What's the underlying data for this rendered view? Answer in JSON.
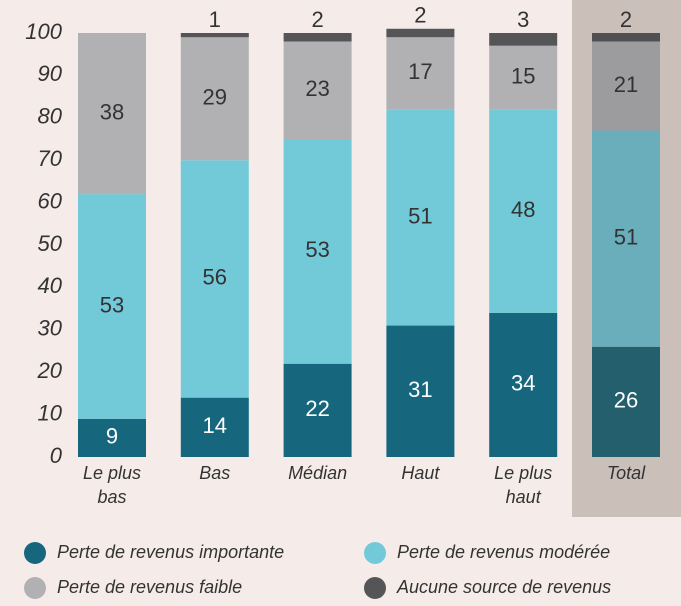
{
  "chart_data": {
    "type": "stacked_bar",
    "categories": [
      "Le plus bas",
      "Bas",
      "Médian",
      "Haut",
      "Le plus haut",
      "Total"
    ],
    "highlight_category": "Total",
    "series": [
      {
        "name": "Perte de revenus importante",
        "color": "#16677d",
        "highlight_color": "#245f6e",
        "label_color": "#ffffff",
        "values": [
          9,
          14,
          22,
          31,
          34,
          26
        ]
      },
      {
        "name": "Perte de revenus modérée",
        "color": "#72c9d8",
        "highlight_color": "#6aaebb",
        "label_color": "#333333",
        "values": [
          53,
          56,
          53,
          51,
          48,
          51
        ]
      },
      {
        "name": "Perte de revenus faible",
        "color": "#b1b1b3",
        "highlight_color": "#9c9c9e",
        "label_color": "#333333",
        "values": [
          38,
          29,
          23,
          17,
          15,
          21
        ]
      },
      {
        "name": "Aucune source de revenus",
        "color": "#555558",
        "highlight_color": "#505053",
        "label_color": "#333333",
        "label_position": "above",
        "values": [
          null,
          1,
          2,
          2,
          3,
          2
        ]
      }
    ],
    "ylim": [
      0,
      100
    ],
    "yticks": [
      0,
      10,
      20,
      30,
      40,
      50,
      60,
      70,
      80,
      90,
      100
    ],
    "grid": false
  }
}
